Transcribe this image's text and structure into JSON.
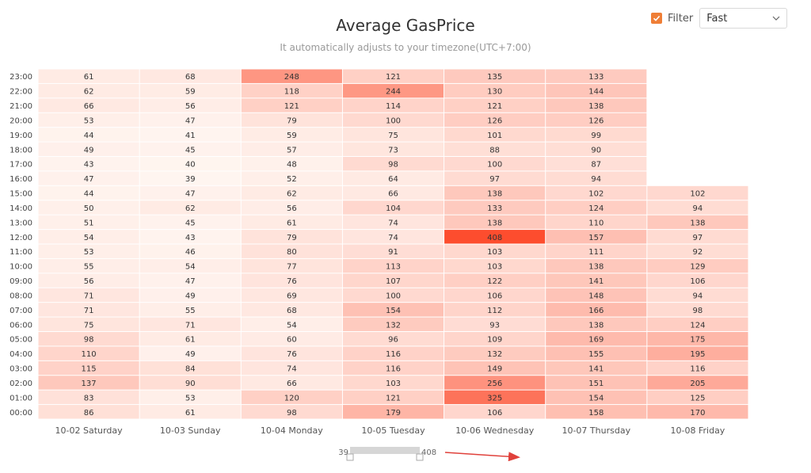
{
  "header": {
    "title": "Average GasPrice",
    "subtitle": "It automatically adjusts to your timezone(UTC+7:00)"
  },
  "filter": {
    "checked": true,
    "label": "Filter",
    "selected": "Fast"
  },
  "range": {
    "min_label": "39",
    "max_label": "408"
  },
  "colors": {
    "accent": "#ef7e36",
    "low": "#fff5f0",
    "high": "#fd4d2e"
  },
  "chart_data": {
    "type": "heatmap",
    "title": "Average GasPrice",
    "subtitle": "It automatically adjusts to your timezone(UTC+7:00)",
    "x_categories": [
      "10-02 Saturday",
      "10-03 Sunday",
      "10-04 Monday",
      "10-05 Tuesday",
      "10-06 Wednesday",
      "10-07 Thursday",
      "10-08 Friday"
    ],
    "y_categories": [
      "00:00",
      "01:00",
      "02:00",
      "03:00",
      "04:00",
      "05:00",
      "06:00",
      "07:00",
      "08:00",
      "09:00",
      "10:00",
      "11:00",
      "12:00",
      "13:00",
      "14:00",
      "15:00",
      "16:00",
      "17:00",
      "18:00",
      "19:00",
      "20:00",
      "21:00",
      "22:00",
      "23:00"
    ],
    "values": [
      [
        86,
        61,
        98,
        179,
        106,
        158,
        170
      ],
      [
        83,
        53,
        120,
        121,
        325,
        154,
        125
      ],
      [
        137,
        90,
        66,
        103,
        256,
        151,
        205
      ],
      [
        115,
        84,
        74,
        116,
        149,
        141,
        116
      ],
      [
        110,
        49,
        76,
        116,
        132,
        155,
        195
      ],
      [
        98,
        61,
        60,
        96,
        109,
        169,
        175
      ],
      [
        75,
        71,
        54,
        132,
        93,
        138,
        124
      ],
      [
        71,
        55,
        68,
        154,
        112,
        166,
        98
      ],
      [
        71,
        49,
        69,
        100,
        106,
        148,
        94
      ],
      [
        56,
        47,
        76,
        107,
        122,
        141,
        106
      ],
      [
        55,
        54,
        77,
        113,
        103,
        138,
        129
      ],
      [
        53,
        46,
        80,
        91,
        103,
        111,
        92
      ],
      [
        54,
        43,
        79,
        74,
        408,
        157,
        97
      ],
      [
        51,
        45,
        61,
        74,
        138,
        110,
        138
      ],
      [
        50,
        62,
        56,
        104,
        133,
        124,
        94
      ],
      [
        44,
        47,
        62,
        66,
        138,
        102,
        102
      ],
      [
        47,
        39,
        52,
        64,
        97,
        94,
        null
      ],
      [
        43,
        40,
        48,
        98,
        100,
        87,
        null
      ],
      [
        49,
        45,
        57,
        73,
        88,
        90,
        null
      ],
      [
        44,
        41,
        59,
        75,
        101,
        99,
        null
      ],
      [
        53,
        47,
        79,
        100,
        126,
        126,
        null
      ],
      [
        66,
        56,
        121,
        114,
        121,
        138,
        null
      ],
      [
        62,
        59,
        118,
        244,
        130,
        144,
        null
      ],
      [
        61,
        68,
        248,
        121,
        135,
        133,
        null
      ]
    ],
    "visual_map": {
      "min": 39,
      "max": 408
    }
  }
}
